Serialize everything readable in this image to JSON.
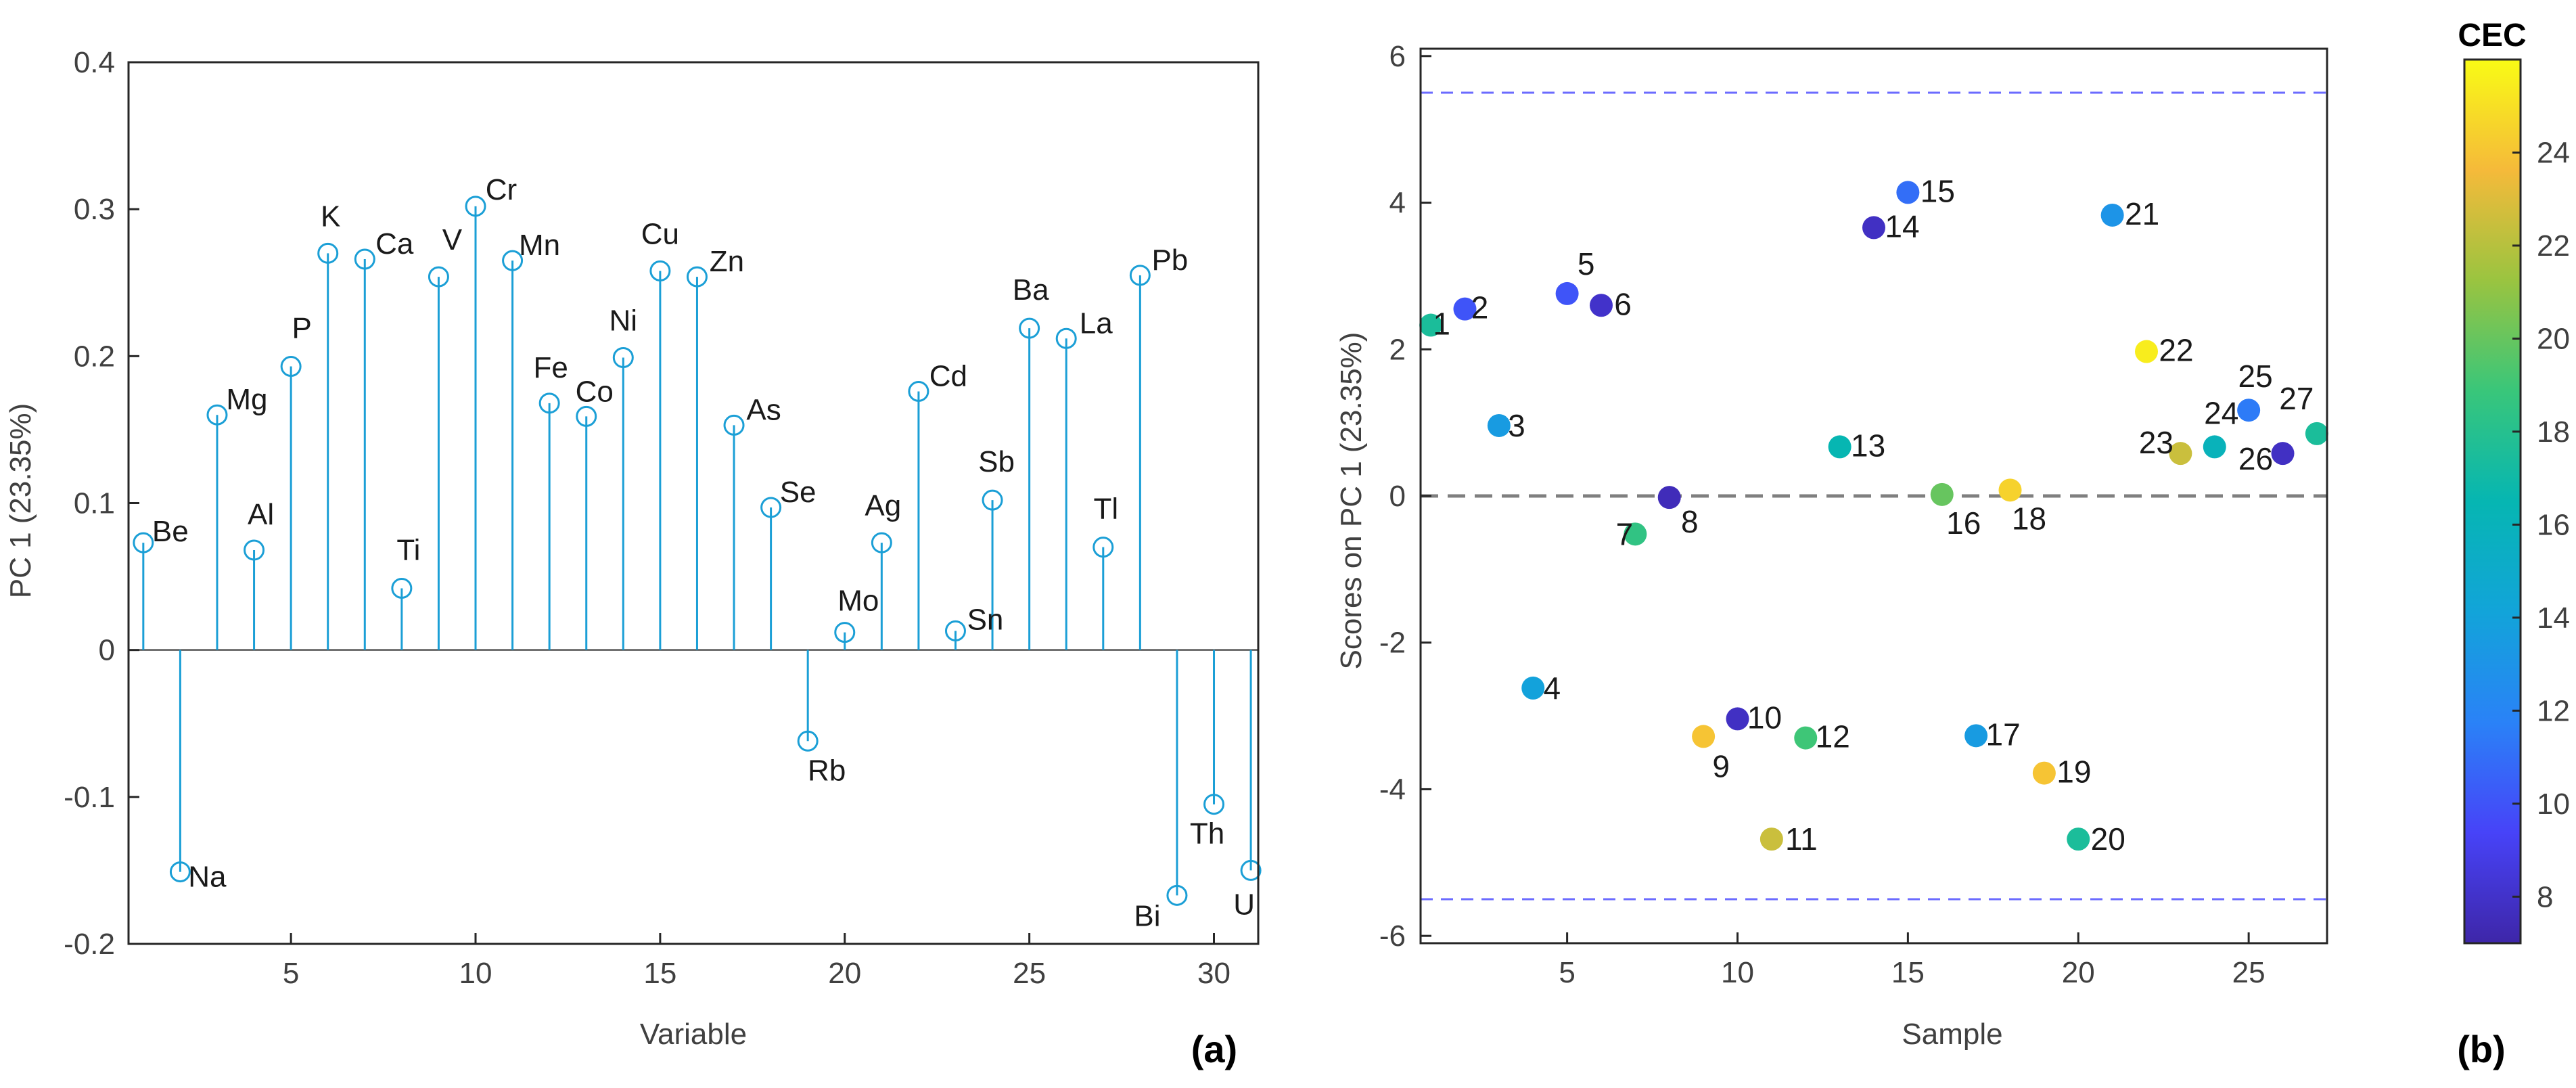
{
  "panel_labels": {
    "a": "(a)",
    "b": "(b)"
  },
  "colors": {
    "stem": "#1b9fd6",
    "axis": "#262626",
    "tick_text": "#404040",
    "zero_line": "#7f7f7f",
    "limit_line": "#6b6bff",
    "colormap": [
      "#3e26a8",
      "#4743f8",
      "#2a82f7",
      "#12a4d9",
      "#06b6b2",
      "#39c67a",
      "#9ac440",
      "#f5ba3a",
      "#f9fb15"
    ]
  },
  "chart_data": [
    {
      "id": "a",
      "type": "stem",
      "title": "",
      "xlabel": "Variable",
      "ylabel": "PC 1 (23.35%)",
      "xlim": [
        0.6,
        31.2
      ],
      "ylim": [
        -0.2,
        0.4
      ],
      "xticks": [
        5,
        10,
        15,
        20,
        25,
        30
      ],
      "xtick_labels": [
        "5",
        "10",
        "15",
        "20",
        "25",
        "30"
      ],
      "yticks": [
        -0.2,
        -0.1,
        0,
        0.1,
        0.2,
        0.3,
        0.4
      ],
      "ytick_labels": [
        "-0.2",
        "-0.1",
        "0",
        "0.1",
        "0.2",
        "0.3",
        "0.4"
      ],
      "points": [
        {
          "x": 1,
          "y": 0.073,
          "label": "Be"
        },
        {
          "x": 2,
          "y": -0.151,
          "label": "Na"
        },
        {
          "x": 3,
          "y": 0.16,
          "label": "Mg"
        },
        {
          "x": 4,
          "y": 0.068,
          "label": "Al"
        },
        {
          "x": 5,
          "y": 0.193,
          "label": "P"
        },
        {
          "x": 6,
          "y": 0.27,
          "label": "K"
        },
        {
          "x": 7,
          "y": 0.266,
          "label": "Ca"
        },
        {
          "x": 8,
          "y": 0.042,
          "label": "Ti"
        },
        {
          "x": 9,
          "y": 0.254,
          "label": "V"
        },
        {
          "x": 10,
          "y": 0.302,
          "label": "Cr"
        },
        {
          "x": 11,
          "y": 0.265,
          "label": "Mn"
        },
        {
          "x": 12,
          "y": 0.168,
          "label": "Fe"
        },
        {
          "x": 13,
          "y": 0.159,
          "label": "Co"
        },
        {
          "x": 14,
          "y": 0.199,
          "label": "Ni"
        },
        {
          "x": 15,
          "y": 0.258,
          "label": "Cu"
        },
        {
          "x": 16,
          "y": 0.254,
          "label": "Zn"
        },
        {
          "x": 17,
          "y": 0.153,
          "label": "As"
        },
        {
          "x": 18,
          "y": 0.097,
          "label": "Se"
        },
        {
          "x": 19,
          "y": -0.062,
          "label": "Rb"
        },
        {
          "x": 20,
          "y": 0.012,
          "label": "Mo"
        },
        {
          "x": 21,
          "y": 0.073,
          "label": "Ag"
        },
        {
          "x": 22,
          "y": 0.176,
          "label": "Cd"
        },
        {
          "x": 23,
          "y": 0.013,
          "label": "Sn"
        },
        {
          "x": 24,
          "y": 0.102,
          "label": "Sb"
        },
        {
          "x": 25,
          "y": 0.219,
          "label": "Ba"
        },
        {
          "x": 26,
          "y": 0.212,
          "label": "La"
        },
        {
          "x": 27,
          "y": 0.07,
          "label": "Tl"
        },
        {
          "x": 28,
          "y": 0.255,
          "label": "Pb"
        },
        {
          "x": 29,
          "y": -0.167,
          "label": "Bi"
        },
        {
          "x": 30,
          "y": -0.105,
          "label": "Th"
        },
        {
          "x": 31,
          "y": -0.15,
          "label": "U"
        }
      ]
    },
    {
      "id": "b",
      "type": "scatter",
      "title": "",
      "xlabel": "Sample",
      "ylabel": "Scores on PC 1 (23.35%)",
      "xlim": [
        0.7,
        27.3
      ],
      "ylim": [
        -6.1,
        6.1
      ],
      "xticks": [
        5,
        10,
        15,
        20,
        25
      ],
      "xtick_labels": [
        "5",
        "10",
        "15",
        "20",
        "25"
      ],
      "yticks": [
        -6,
        -4,
        -2,
        0,
        2,
        4,
        6
      ],
      "ytick_labels": [
        "-6",
        "-4",
        "-2",
        "0",
        "2",
        "4",
        "6"
      ],
      "zero_line": 0,
      "confidence_limits": [
        5.5,
        -5.5
      ],
      "colorbar": {
        "label": "CEC",
        "range": [
          7,
          26
        ],
        "ticks": [
          8,
          10,
          12,
          14,
          16,
          18,
          20,
          22,
          24
        ],
        "tick_labels": [
          "8",
          "10",
          "12",
          "14",
          "16",
          "18",
          "20",
          "22",
          "24"
        ]
      },
      "points": [
        {
          "x": 1,
          "y": 2.33,
          "label": "1",
          "cec": 17.5
        },
        {
          "x": 2,
          "y": 2.55,
          "label": "2",
          "cec": 10.0
        },
        {
          "x": 3,
          "y": 0.96,
          "label": "3",
          "cec": 13.5
        },
        {
          "x": 4,
          "y": -2.62,
          "label": "4",
          "cec": 14.0
        },
        {
          "x": 5,
          "y": 2.76,
          "label": "5",
          "cec": 10.0
        },
        {
          "x": 6,
          "y": 2.6,
          "label": "6",
          "cec": 8.0
        },
        {
          "x": 7,
          "y": -0.52,
          "label": "7",
          "cec": 18.5
        },
        {
          "x": 8,
          "y": -0.02,
          "label": "8",
          "cec": 7.5
        },
        {
          "x": 9,
          "y": -3.28,
          "label": "9",
          "cec": 24.0
        },
        {
          "x": 10,
          "y": -3.04,
          "label": "10",
          "cec": 7.8
        },
        {
          "x": 11,
          "y": -4.68,
          "label": "11",
          "cec": 22.5
        },
        {
          "x": 12,
          "y": -3.3,
          "label": "12",
          "cec": 19.0
        },
        {
          "x": 13,
          "y": 0.67,
          "label": "13",
          "cec": 16.5
        },
        {
          "x": 14,
          "y": 3.66,
          "label": "14",
          "cec": 7.8
        },
        {
          "x": 15,
          "y": 4.14,
          "label": "15",
          "cec": 11.0
        },
        {
          "x": 16,
          "y": 0.02,
          "label": "16",
          "cec": 20.0
        },
        {
          "x": 17,
          "y": -3.27,
          "label": "17",
          "cec": 13.5
        },
        {
          "x": 18,
          "y": 0.08,
          "label": "18",
          "cec": 24.5
        },
        {
          "x": 19,
          "y": -3.78,
          "label": "19",
          "cec": 24.0
        },
        {
          "x": 20,
          "y": -4.68,
          "label": "20",
          "cec": 17.5
        },
        {
          "x": 21,
          "y": 3.83,
          "label": "21",
          "cec": 13.0
        },
        {
          "x": 22,
          "y": 1.97,
          "label": "22",
          "cec": 25.5
        },
        {
          "x": 23,
          "y": 0.58,
          "label": "23",
          "cec": 22.5
        },
        {
          "x": 24,
          "y": 0.67,
          "label": "24",
          "cec": 16.0
        },
        {
          "x": 25,
          "y": 1.17,
          "label": "25",
          "cec": 11.5
        },
        {
          "x": 26,
          "y": 0.58,
          "label": "26",
          "cec": 7.8
        },
        {
          "x": 27,
          "y": 0.85,
          "label": "27",
          "cec": 17.5
        }
      ]
    }
  ]
}
